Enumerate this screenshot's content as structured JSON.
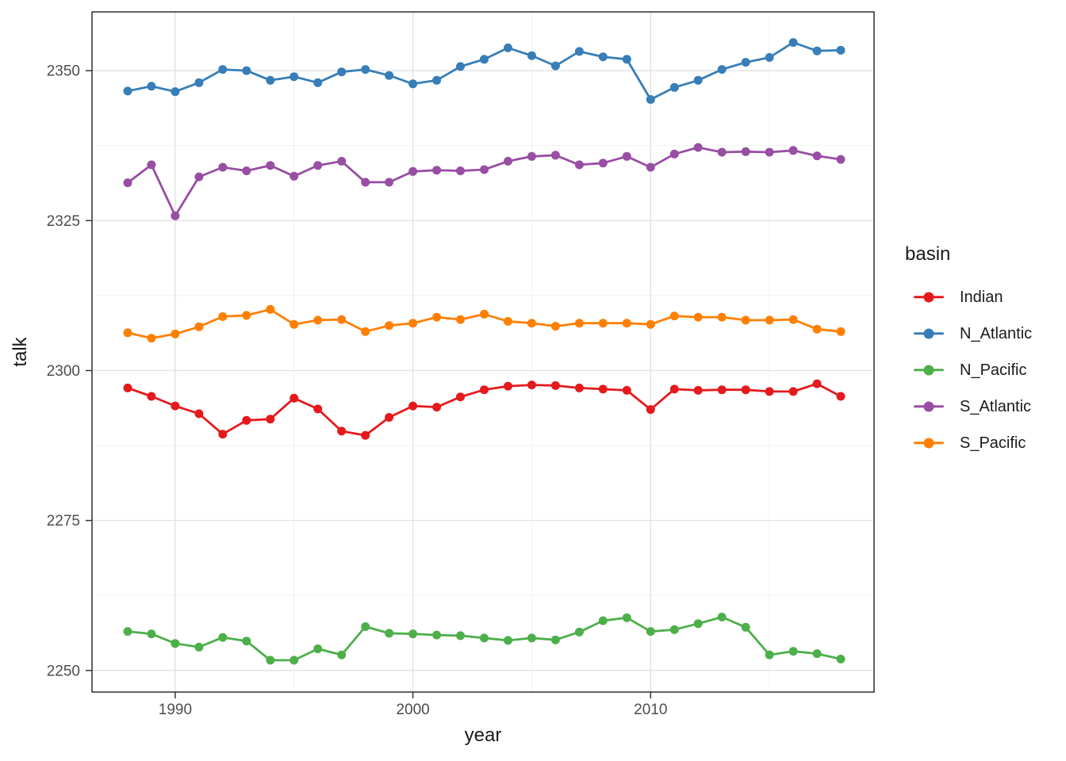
{
  "chart_data": {
    "type": "line",
    "title": "",
    "xlabel": "year",
    "ylabel": "talk",
    "legend_title": "basin",
    "legend_position": "right",
    "grid": true,
    "xlim": [
      1986.5,
      2019.4
    ],
    "ylim": [
      2246.4,
      2359.8
    ],
    "x_tick_values": [
      1990,
      2000,
      2010
    ],
    "x_tick_labels": [
      "1990",
      "2000",
      "2010"
    ],
    "x_minor_ticks": [
      1995,
      2005,
      2015
    ],
    "y_tick_values": [
      2250,
      2275,
      2300,
      2325,
      2350
    ],
    "y_tick_labels": [
      "2250",
      "2275",
      "2300",
      "2325",
      "2350"
    ],
    "y_minor_ticks": [
      2262.5,
      2287.5,
      2312.5,
      2337.5
    ],
    "x": [
      1988,
      1989,
      1990,
      1991,
      1992,
      1993,
      1994,
      1995,
      1996,
      1997,
      1998,
      1999,
      2000,
      2001,
      2002,
      2003,
      2004,
      2005,
      2006,
      2007,
      2008,
      2009,
      2010,
      2011,
      2012,
      2013,
      2014,
      2015,
      2016,
      2017,
      2018
    ],
    "series": [
      {
        "name": "Indian",
        "color": "#E41A1C",
        "values": [
          2297.1,
          2295.7,
          2294.1,
          2292.8,
          2289.4,
          2291.7,
          2291.9,
          2295.4,
          2293.6,
          2289.9,
          2289.2,
          2292.2,
          2294.1,
          2293.9,
          2295.6,
          2296.8,
          2297.4,
          2297.6,
          2297.5,
          2297.1,
          2296.9,
          2296.7,
          2293.5,
          2296.9,
          2296.7,
          2296.8,
          2296.8,
          2296.5,
          2296.5,
          2297.8,
          2295.7
        ]
      },
      {
        "name": "N_Atlantic",
        "color": "#377EB8",
        "values": [
          2346.6,
          2347.4,
          2346.5,
          2348.0,
          2350.2,
          2350.0,
          2348.4,
          2349.0,
          2348.0,
          2349.8,
          2350.2,
          2349.2,
          2347.8,
          2348.4,
          2350.7,
          2351.9,
          2353.8,
          2352.5,
          2350.8,
          2353.2,
          2352.3,
          2351.9,
          2345.2,
          2347.2,
          2348.4,
          2350.2,
          2351.4,
          2352.2,
          2354.7,
          2353.3,
          2353.4
        ]
      },
      {
        "name": "N_Pacific",
        "color": "#4DAF4A",
        "values": [
          2256.5,
          2256.1,
          2254.5,
          2253.9,
          2255.5,
          2254.9,
          2251.7,
          2251.7,
          2253.6,
          2252.6,
          2257.3,
          2256.2,
          2256.1,
          2255.9,
          2255.8,
          2255.4,
          2255.0,
          2255.4,
          2255.1,
          2256.4,
          2258.3,
          2258.8,
          2256.5,
          2256.8,
          2257.8,
          2258.9,
          2257.2,
          2252.6,
          2253.2,
          2252.8,
          2251.9
        ]
      },
      {
        "name": "S_Atlantic",
        "color": "#984EA3",
        "values": [
          2331.3,
          2334.3,
          2325.8,
          2332.3,
          2333.9,
          2333.3,
          2334.2,
          2332.4,
          2334.2,
          2334.9,
          2331.4,
          2331.4,
          2333.2,
          2333.4,
          2333.3,
          2333.5,
          2334.9,
          2335.7,
          2335.9,
          2334.3,
          2334.6,
          2335.7,
          2333.9,
          2336.1,
          2337.2,
          2336.4,
          2336.5,
          2336.4,
          2336.7,
          2335.8,
          2335.2
        ]
      },
      {
        "name": "S_Pacific",
        "color": "#FF7F00",
        "values": [
          2306.3,
          2305.4,
          2306.1,
          2307.3,
          2309.0,
          2309.2,
          2310.2,
          2307.7,
          2308.4,
          2308.5,
          2306.5,
          2307.5,
          2307.9,
          2308.9,
          2308.5,
          2309.4,
          2308.2,
          2307.9,
          2307.4,
          2307.9,
          2307.9,
          2307.9,
          2307.7,
          2309.1,
          2308.9,
          2308.9,
          2308.4,
          2308.4,
          2308.5,
          2306.9,
          2306.5
        ]
      }
    ]
  }
}
